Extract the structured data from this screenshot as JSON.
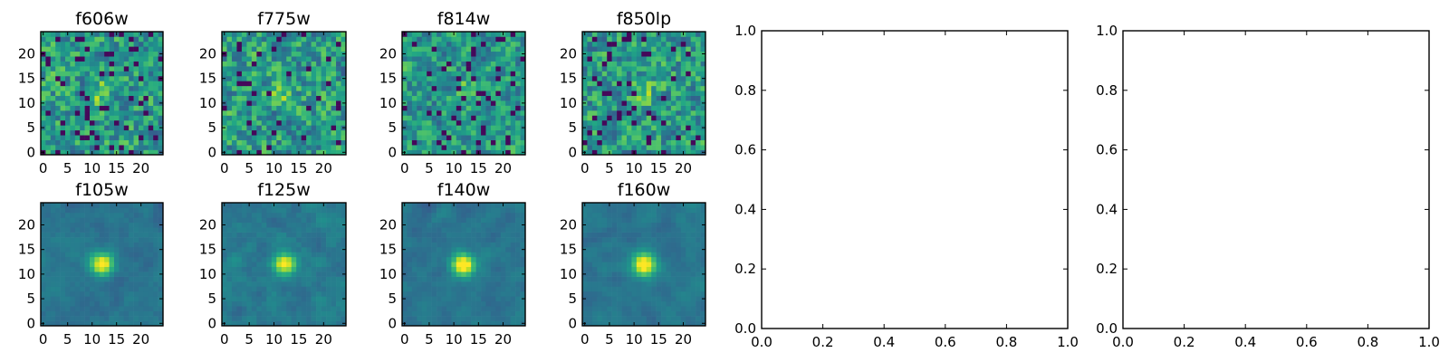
{
  "chart_data": [
    {
      "type": "heatmap",
      "title": "f606w",
      "grid_size": 25,
      "xticks": [
        "0",
        "5",
        "10",
        "15",
        "20"
      ],
      "yticks": [
        "0",
        "5",
        "10",
        "15",
        "20"
      ],
      "xlim": [
        -0.5,
        24.5
      ],
      "ylim": [
        -0.5,
        24.5
      ],
      "colormap": "viridis",
      "seed": 11,
      "source_strength": 0.35,
      "smoothness": 0.15,
      "noise_level": 0.85,
      "dark_speckle": 0.07
    },
    {
      "type": "heatmap",
      "title": "f775w",
      "grid_size": 25,
      "xticks": [
        "0",
        "5",
        "10",
        "15",
        "20"
      ],
      "yticks": [
        "0",
        "5",
        "10",
        "15",
        "20"
      ],
      "xlim": [
        -0.5,
        24.5
      ],
      "ylim": [
        -0.5,
        24.5
      ],
      "colormap": "viridis",
      "seed": 23,
      "source_strength": 0.3,
      "smoothness": 0.15,
      "noise_level": 0.85,
      "dark_speckle": 0.06
    },
    {
      "type": "heatmap",
      "title": "f814w",
      "grid_size": 25,
      "xticks": [
        "0",
        "5",
        "10",
        "15",
        "20"
      ],
      "yticks": [
        "0",
        "5",
        "10",
        "15",
        "20"
      ],
      "xlim": [
        -0.5,
        24.5
      ],
      "ylim": [
        -0.5,
        24.5
      ],
      "colormap": "viridis",
      "seed": 37,
      "source_strength": 0.4,
      "smoothness": 0.2,
      "noise_level": 0.8,
      "dark_speckle": 0.07
    },
    {
      "type": "heatmap",
      "title": "f850lp",
      "grid_size": 25,
      "xticks": [
        "0",
        "5",
        "10",
        "15",
        "20"
      ],
      "yticks": [
        "0",
        "5",
        "10",
        "15",
        "20"
      ],
      "xlim": [
        -0.5,
        24.5
      ],
      "ylim": [
        -0.5,
        24.5
      ],
      "colormap": "viridis",
      "seed": 41,
      "source_strength": 0.3,
      "smoothness": 0.15,
      "noise_level": 0.85,
      "dark_speckle": 0.08
    },
    {
      "type": "heatmap",
      "title": "f105w",
      "grid_size": 25,
      "xticks": [
        "0",
        "5",
        "10",
        "15",
        "20"
      ],
      "yticks": [
        "0",
        "5",
        "10",
        "15",
        "20"
      ],
      "xlim": [
        -0.5,
        24.5
      ],
      "ylim": [
        -0.5,
        24.5
      ],
      "colormap": "viridis",
      "seed": 53,
      "source_strength": 0.9,
      "smoothness": 0.6,
      "noise_level": 0.4,
      "dark_speckle": 0.0
    },
    {
      "type": "heatmap",
      "title": "f125w",
      "grid_size": 25,
      "xticks": [
        "0",
        "5",
        "10",
        "15",
        "20"
      ],
      "yticks": [
        "0",
        "5",
        "10",
        "15",
        "20"
      ],
      "xlim": [
        -0.5,
        24.5
      ],
      "ylim": [
        -0.5,
        24.5
      ],
      "colormap": "viridis",
      "seed": 67,
      "source_strength": 0.8,
      "smoothness": 0.55,
      "noise_level": 0.45,
      "dark_speckle": 0.0
    },
    {
      "type": "heatmap",
      "title": "f140w",
      "grid_size": 25,
      "xticks": [
        "0",
        "5",
        "10",
        "15",
        "20"
      ],
      "yticks": [
        "0",
        "5",
        "10",
        "15",
        "20"
      ],
      "xlim": [
        -0.5,
        24.5
      ],
      "ylim": [
        -0.5,
        24.5
      ],
      "colormap": "viridis",
      "seed": 71,
      "source_strength": 0.95,
      "smoothness": 0.6,
      "noise_level": 0.4,
      "dark_speckle": 0.0
    },
    {
      "type": "heatmap",
      "title": "f160w",
      "grid_size": 25,
      "xticks": [
        "0",
        "5",
        "10",
        "15",
        "20"
      ],
      "yticks": [
        "0",
        "5",
        "10",
        "15",
        "20"
      ],
      "xlim": [
        -0.5,
        24.5
      ],
      "ylim": [
        -0.5,
        24.5
      ],
      "colormap": "viridis",
      "seed": 83,
      "source_strength": 1.0,
      "smoothness": 0.65,
      "noise_level": 0.4,
      "dark_speckle": 0.0
    },
    {
      "type": "scatter",
      "title": "",
      "xlim": [
        0.0,
        1.0
      ],
      "ylim": [
        0.0,
        1.0
      ],
      "xticks": [
        "0.0",
        "0.2",
        "0.4",
        "0.6",
        "0.8",
        "1.0"
      ],
      "yticks": [
        "0.0",
        "0.2",
        "0.4",
        "0.6",
        "0.8",
        "1.0"
      ],
      "series": []
    },
    {
      "type": "scatter",
      "title": "",
      "xlim": [
        0.0,
        1.0
      ],
      "ylim": [
        0.0,
        1.0
      ],
      "xticks": [
        "0.0",
        "0.2",
        "0.4",
        "0.6",
        "0.8",
        "1.0"
      ],
      "yticks": [
        "0.0",
        "0.2",
        "0.4",
        "0.6",
        "0.8",
        "1.0"
      ],
      "series": []
    }
  ]
}
